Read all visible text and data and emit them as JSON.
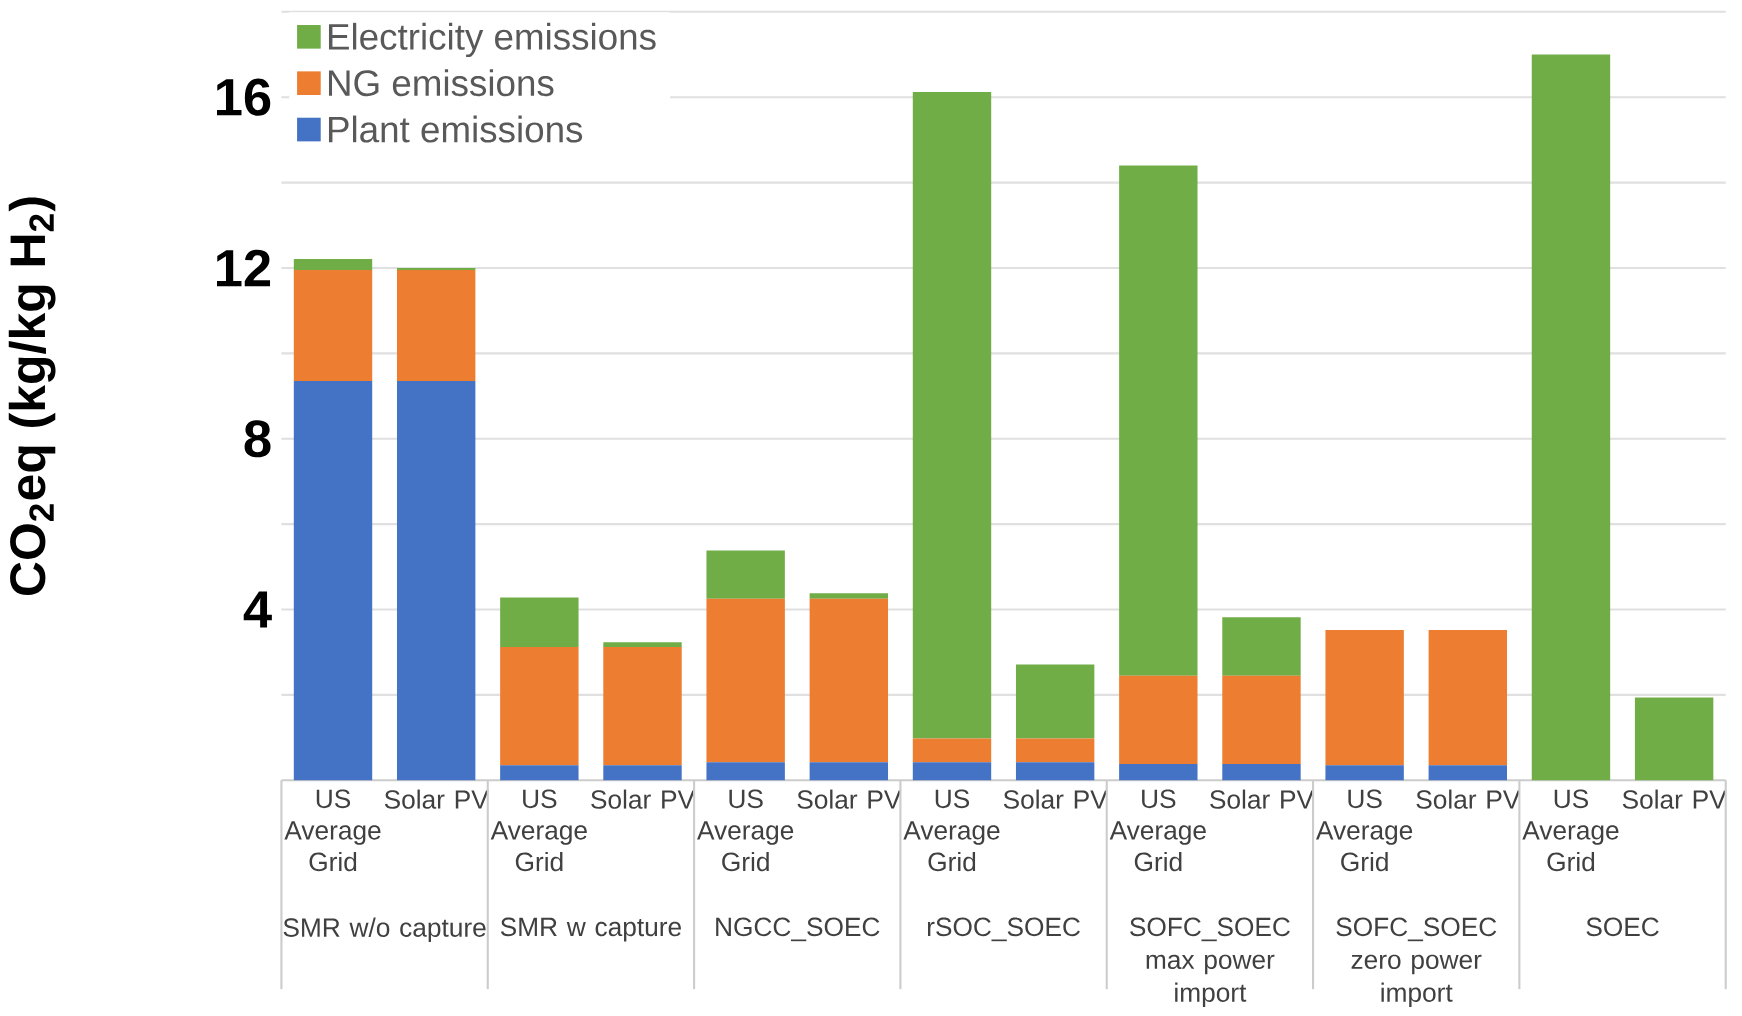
{
  "chart_data": {
    "type": "bar",
    "stacked": true,
    "ylabel": "CO$_{2}$eq (kg/kg H$_{2}$)",
    "categories": [
      "US Average Grid",
      "Solar PV",
      "US Average Grid",
      "Solar PV",
      "US Average Grid",
      "Solar PV",
      "US Average Grid",
      "Solar PV",
      "US Average Grid",
      "Solar PV",
      "US Average Grid",
      "Solar PV",
      "US Average Grid",
      "Solar PV"
    ],
    "annotations": [
      "SMR w/o capture",
      "SMR w capture",
      "NGCC_SOEC",
      "rSOC_SOEC",
      "SOFC_SOEC max power import",
      "SOFC_SOEC zero power import",
      "SOEC"
    ],
    "series": [
      {
        "name": "Plant emissions",
        "color": "#4472c4",
        "values": [
          9.35,
          9.35,
          0.35,
          0.35,
          0.42,
          0.42,
          0.42,
          0.42,
          0.38,
          0.38,
          0.35,
          0.35,
          0,
          0
        ]
      },
      {
        "name": "NG emissions",
        "color": "#ed7d31",
        "values": [
          2.6,
          2.6,
          2.77,
          2.77,
          3.83,
          3.83,
          0.56,
          0.56,
          2.07,
          2.07,
          3.17,
          3.17,
          0,
          0
        ]
      },
      {
        "name": "Electricity emissions",
        "color": "#70ad47",
        "values": [
          0.26,
          0.05,
          1.16,
          0.11,
          1.13,
          0.13,
          15.14,
          1.73,
          11.95,
          1.37,
          0,
          0,
          17.0,
          1.94
        ]
      }
    ],
    "ylim": [
      0,
      18
    ],
    "yticks": [
      {
        "value": 2,
        "label": null
      },
      4,
      {
        "value": 6,
        "label": null
      },
      8,
      {
        "value": 10,
        "label": null
      },
      12,
      {
        "value": 14,
        "label": null
      },
      16,
      {
        "value": 18,
        "label": null
      }
    ],
    "grid": "y",
    "legend": "top left"
  }
}
